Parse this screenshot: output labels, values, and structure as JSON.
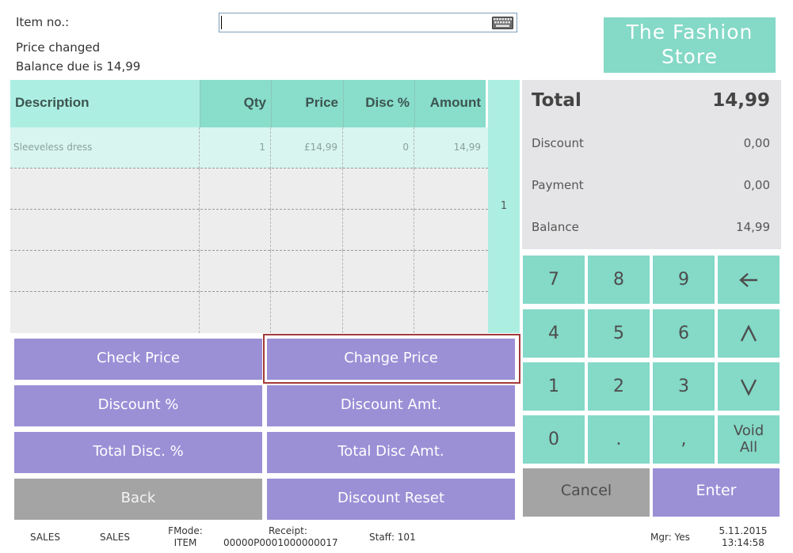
{
  "header": {
    "item_label": "Item no.:",
    "item_value": "",
    "status_line1": "Price changed",
    "status_line2": "Balance due is 14,99",
    "brand_line1": "The Fashion",
    "brand_line2": "Store"
  },
  "table": {
    "columns": [
      "Description",
      "Qty",
      "Price",
      "Disc %",
      "Amount"
    ],
    "rows": [
      {
        "description": "Sleeveless dress",
        "qty": "1",
        "price": "£14,99",
        "disc": "0",
        "amount": "14,99"
      }
    ],
    "page": "1"
  },
  "totals": {
    "total_label": "Total",
    "total_value": "14,99",
    "discount_label": "Discount",
    "discount_value": "0,00",
    "payment_label": "Payment",
    "payment_value": "0,00",
    "balance_label": "Balance",
    "balance_value": "14,99"
  },
  "keypad": {
    "keys": [
      "7",
      "8",
      "9",
      "4",
      "5",
      "6",
      "1",
      "2",
      "3",
      "0",
      ".",
      ","
    ],
    "void_line1": "Void",
    "void_line2": "All",
    "cancel": "Cancel",
    "enter": "Enter"
  },
  "functions": {
    "check_price": "Check Price",
    "change_price": "Change Price",
    "discount_pct": "Discount %",
    "discount_amt": "Discount Amt.",
    "total_disc_pct": "Total Disc. %",
    "total_disc_amt": "Total Disc Amt.",
    "back": "Back",
    "discount_reset": "Discount Reset"
  },
  "footer": {
    "sales1": "SALES",
    "sales2": "SALES",
    "fmode_label": "FMode:",
    "fmode_value": "ITEM",
    "receipt_label": "Receipt:",
    "receipt_value": "00000P0001000000017",
    "staff": "Staff: 101",
    "mgr": "Mgr: Yes",
    "date": "5.11.2015",
    "time": "13:14:58"
  },
  "colors": {
    "teal_header": "#88ddcb",
    "teal_light": "#acefe2",
    "key_teal": "#84d9c7",
    "purple": "#9b8fd6",
    "grey_button": "#a4a4a4",
    "highlight_border": "#a33a3a"
  },
  "icons": {
    "keyboard": "keyboard-icon",
    "backspace": "arrow-left-icon",
    "up": "chevron-up-icon",
    "down": "chevron-down-icon"
  }
}
